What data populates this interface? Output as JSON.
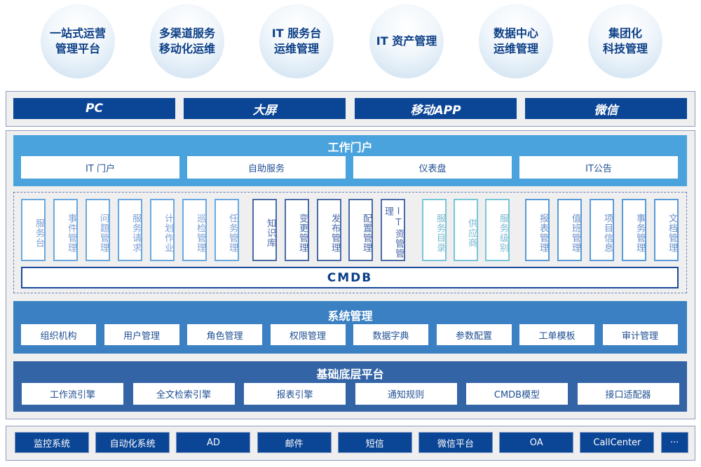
{
  "capabilities": [
    "一站式运营\n管理平台",
    "多渠道服务\n移动化运维",
    "IT 服务台\n运维管理",
    "IT 资产管理",
    "数据中心\n运维管理",
    "集团化\n科技管理"
  ],
  "channels": [
    "PC",
    "大屏",
    "移动APP",
    "微信"
  ],
  "portal": {
    "title": "工作门户",
    "items": [
      "IT 门户",
      "自助服务",
      "仪表盘",
      "IT公告"
    ]
  },
  "modules": {
    "group1": [
      "服务台",
      "事件管理",
      "问题管理",
      "服务请求",
      "计划作业",
      "巡检管理",
      "任务管理"
    ],
    "group2": [
      "知识库",
      "变更管理",
      "发布管理",
      "配置管理",
      "IT资管管理"
    ],
    "group3": [
      "服务目录",
      "供应商",
      "服务级别"
    ],
    "group4": [
      "报表管理",
      "值班管理",
      "项目信息",
      "事务管理",
      "文档管理"
    ],
    "cmdb": "CMDB"
  },
  "system": {
    "title": "系统管理",
    "items": [
      "组织机构",
      "用户管理",
      "角色管理",
      "权限管理",
      "数据字典",
      "参数配置",
      "工单模板",
      "审计管理"
    ]
  },
  "foundation": {
    "title": "基础底层平台",
    "items": [
      "工作流引擎",
      "全文检索引擎",
      "报表引擎",
      "通知规则",
      "CMDB模型",
      "接口适配器"
    ]
  },
  "integrations": [
    "监控系统",
    "自动化系统",
    "AD",
    "邮件",
    "短信",
    "微信平台",
    "OA",
    "CallCenter",
    "···"
  ],
  "colors": {
    "navy": "#0b4595",
    "portal": "#4aa3dc",
    "system": "#3a80c2",
    "foundation": "#3264a6",
    "group1": "#6aa8e0",
    "group2": "#4a6aa8",
    "group3": "#78c6d8",
    "group4": "#5a9ad8"
  }
}
